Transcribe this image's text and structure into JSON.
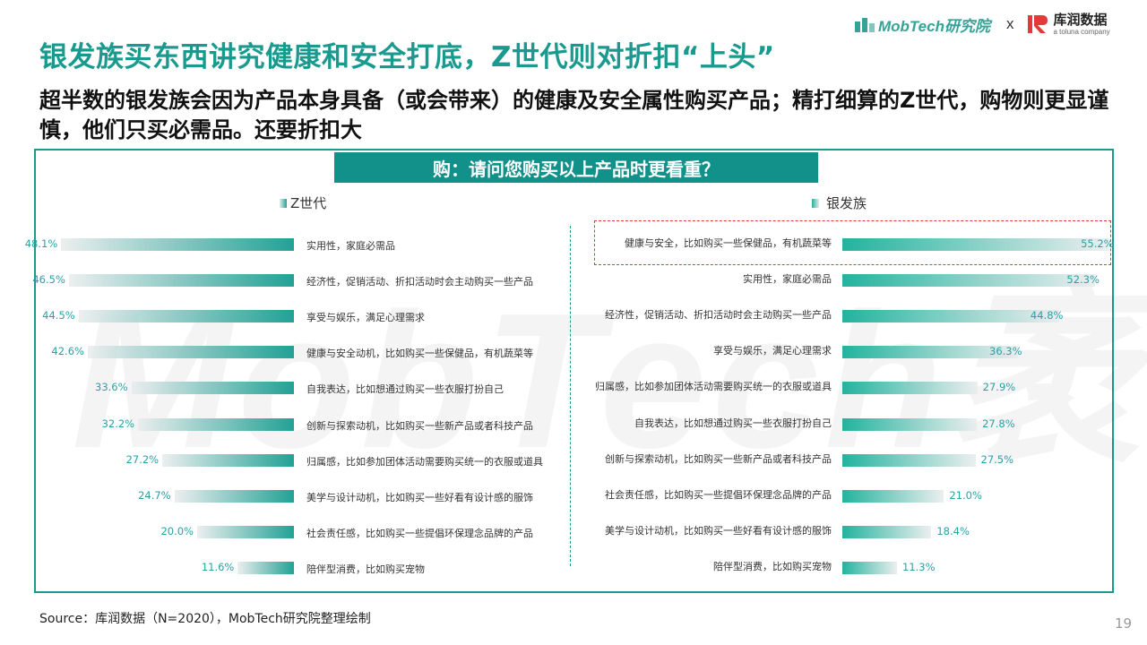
{
  "header": {
    "brand_mobtech": "MobTech研究院",
    "brand_x": "x",
    "brand_kuerun": "库润数据",
    "brand_kuerun_sub": "a toluna company",
    "logo_icon": "mobtech-logo-icon",
    "kr_icon": "kuerun-logo-icon"
  },
  "title": "银发族买东西讲究健康和安全打底，Z世代则对折扣“上头”",
  "subtitle": "超半数的银发族会因为产品本身具备（或会带来）的健康及安全属性购买产品；精打细算的Z世代，购物则更显谨慎，他们只买必需品。还要折扣大",
  "footer": {
    "source": "Source：库润数据（N=2020），MobTech研究院整理绘制",
    "page_number": "19"
  },
  "watermark": "MobTech袤博",
  "colors": {
    "brand_teal": "#1a9a8e",
    "title_bar": "#11918a",
    "value_text": "#2a9fa6",
    "highlight_red": "#e03a3a"
  },
  "chart_data": [
    {
      "type": "bar",
      "orientation": "horizontal",
      "title": "购：请问您购买以上产品时更看重？",
      "series": [
        {
          "name": "Z世代",
          "categories": [
            "实用性，家庭必需品",
            "经济性，促销活动、折扣活动时会主动购买一些产品",
            "享受与娱乐，满足心理需求",
            "健康与安全动机，比如购买一些保健品，有机蔬菜等",
            "自我表达，比如想通过购买一些衣服打扮自己",
            "创新与探索动机，比如购买一些新产品或者科技产品",
            "归属感，比如参加团体活动需要购买统一的衣服或道具",
            "美学与设计动机，比如购买一些好看有设计感的服饰",
            "社会责任感，比如购买一些提倡环保理念品牌的产品",
            "陪伴型消费，比如购买宠物"
          ],
          "values": [
            48.1,
            46.5,
            44.5,
            42.6,
            33.6,
            32.2,
            27.2,
            24.7,
            20.0,
            11.6
          ],
          "labels": [
            "48.1%",
            "46.5%",
            "44.5%",
            "42.6%",
            "33.6%",
            "32.2%",
            "27.2%",
            "24.7%",
            "20.0%",
            "11.6%"
          ]
        },
        {
          "name": "银发族",
          "categories": [
            "健康与安全，比如购买一些保健品，有机蔬菜等",
            "实用性，家庭必需品",
            "经济性，促销活动、折扣活动时会主动购买一些产品",
            "享受与娱乐，满足心理需求",
            "归属感，比如参加团体活动需要购买统一的衣服或道具",
            "自我表达，比如想通过购买一些衣服打扮自己",
            "创新与探索动机，比如购买一些新产品或者科技产品",
            "社会责任感，比如购买一些提倡环保理念品牌的产品",
            "美学与设计动机，比如购买一些好看有设计感的服饰",
            "陪伴型消费，比如购买宠物"
          ],
          "values": [
            55.2,
            52.3,
            44.8,
            36.3,
            27.9,
            27.8,
            27.5,
            21.0,
            18.4,
            11.3
          ],
          "labels": [
            "55.2%",
            "52.3%",
            "44.8%",
            "36.3%",
            "27.9%",
            "27.8%",
            "27.5%",
            "21.0%",
            "18.4%",
            "11.3%"
          ]
        }
      ],
      "value_unit": "%",
      "grid": false,
      "legend_position": "top",
      "highlighted_category": "健康与安全，比如购买一些保健品，有机蔬菜等"
    }
  ]
}
